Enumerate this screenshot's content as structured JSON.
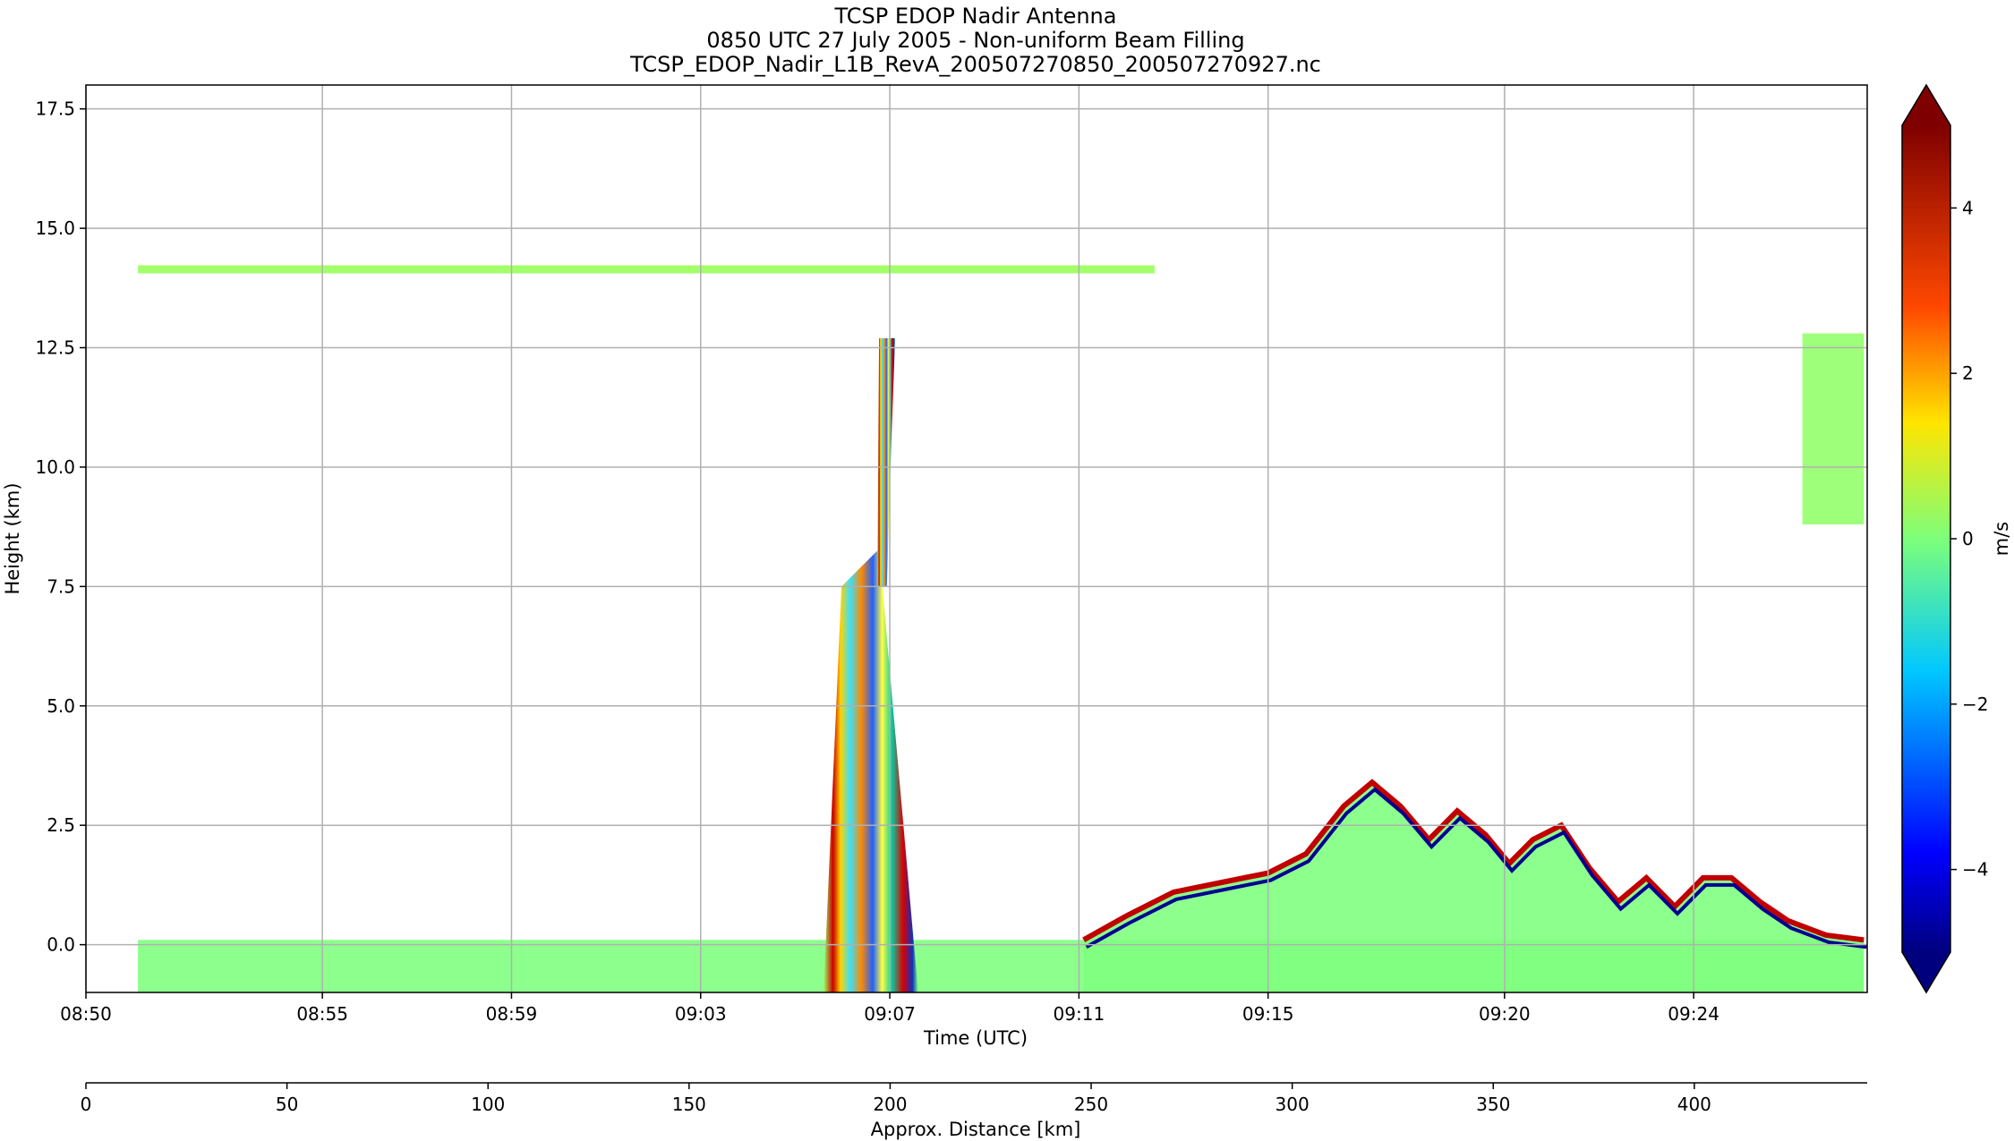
{
  "chart_data": {
    "type": "heatmap",
    "title": [
      "TCSP EDOP Nadir Antenna",
      "0850 UTC 27 July 2005 - Non-uniform Beam Filling",
      "TCSP_EDOP_Nadir_L1B_RevA_200507270850_200507270927.nc"
    ],
    "xlabel": "Time (UTC)",
    "ylabel": "Height (km)",
    "x2label": "Approx. Distance [km]",
    "colorbar_label": "m/s",
    "colormap": "jet",
    "colorbar_extend": "both",
    "clim": [
      -5,
      5
    ],
    "grid": true,
    "x_time_range": [
      "08:50:00",
      "09:27:40"
    ],
    "x_ticks": [
      "08:50",
      "08:55",
      "08:59",
      "09:03",
      "09:07",
      "09:11",
      "09:15",
      "09:20",
      "09:24"
    ],
    "x_tick_minutes": [
      0,
      5,
      9,
      13,
      17,
      21,
      25,
      30,
      34
    ],
    "x_range_minutes": [
      0,
      37.67
    ],
    "ylim": [
      -1.0,
      18.0
    ],
    "y_ticks": [
      "0.0",
      "2.5",
      "5.0",
      "7.5",
      "10.0",
      "12.5",
      "15.0",
      "17.5"
    ],
    "y_tick_values": [
      0.0,
      2.5,
      5.0,
      7.5,
      10.0,
      12.5,
      15.0,
      17.5
    ],
    "x2_ticks": [
      "0",
      "50",
      "100",
      "150",
      "200",
      "250",
      "300",
      "350",
      "400"
    ],
    "x2_tick_values": [
      0,
      50,
      100,
      150,
      200,
      250,
      300,
      350,
      400
    ],
    "x2lim": [
      0,
      443
    ],
    "colorbar_ticks": [
      "−4",
      "−2",
      "0",
      "2",
      "4"
    ],
    "colorbar_tick_values": [
      -4,
      -2,
      0,
      2,
      4
    ],
    "features": [
      {
        "name": "high cloud layer",
        "t_start": 1.1,
        "t_end": 22.6,
        "height": 14.15,
        "velocity": 0.3
      },
      {
        "name": "surface echo band",
        "t_start": 1.1,
        "t_end": 37.6,
        "h_low": -1.0,
        "h_high": 0.1,
        "velocity": 0.0
      },
      {
        "name": "deep convective core",
        "t_start": 15.6,
        "t_end": 17.6,
        "h_low": -1.0,
        "h_high": 12.7,
        "velocity": -0.5
      },
      {
        "name": "anvil extension",
        "t_start": 17.0,
        "t_end": 17.5,
        "h_low": 7.5,
        "h_high": 12.5,
        "velocity": 0.5
      },
      {
        "name": "precipitation feature",
        "t_start": 21.1,
        "t_end": 37.6,
        "h_low": -1.0,
        "h_high": 3.4,
        "velocity": 0.0
      },
      {
        "name": "upper cloud right edge",
        "t_start": 36.3,
        "t_end": 37.6,
        "h_low": 8.8,
        "h_high": 12.8,
        "velocity": 0.2
      }
    ],
    "top_profile": {
      "t": [
        21.1,
        22.0,
        23.0,
        24.0,
        25.0,
        25.8,
        26.6,
        27.2,
        27.8,
        28.4,
        29.0,
        29.6,
        30.1,
        30.6,
        31.2,
        31.8,
        32.4,
        33.0,
        33.6,
        34.2,
        34.8,
        35.4,
        36.0,
        36.8,
        37.6
      ],
      "h": [
        0.1,
        0.6,
        1.1,
        1.3,
        1.5,
        1.9,
        2.9,
        3.4,
        2.9,
        2.2,
        2.8,
        2.3,
        1.7,
        2.2,
        2.5,
        1.6,
        0.9,
        1.4,
        0.8,
        1.4,
        1.4,
        0.9,
        0.5,
        0.2,
        0.1
      ]
    }
  }
}
